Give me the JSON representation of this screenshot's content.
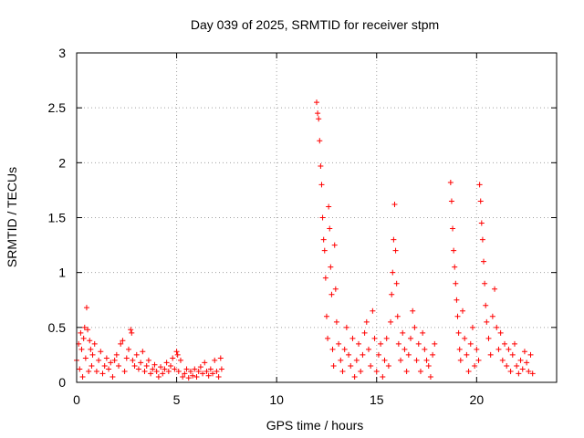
{
  "chart_data": {
    "type": "scatter",
    "title": "Day 039 of 2025, SRMTID for receiver stpm",
    "xlabel": "GPS time / hours",
    "ylabel": "SRMTID / TECUs",
    "xlim": [
      0,
      24
    ],
    "ylim": [
      0,
      3
    ],
    "xticks": [
      0,
      5,
      10,
      15,
      20
    ],
    "xtick_labels": [
      "0",
      "5",
      "10",
      "15",
      "20"
    ],
    "yticks": [
      0,
      0.5,
      1,
      1.5,
      2,
      2.5,
      3
    ],
    "ytick_labels": [
      "0",
      "0.5",
      "1",
      "1.5",
      "2",
      "2.5",
      "3"
    ],
    "grid": true,
    "marker": "+",
    "series": [
      {
        "name": "SRMTID",
        "color": "#ff0000",
        "points": [
          [
            0.0,
            0.2
          ],
          [
            0.1,
            0.35
          ],
          [
            0.15,
            0.12
          ],
          [
            0.2,
            0.45
          ],
          [
            0.25,
            0.3
          ],
          [
            0.3,
            0.05
          ],
          [
            0.35,
            0.4
          ],
          [
            0.4,
            0.5
          ],
          [
            0.45,
            0.22
          ],
          [
            0.5,
            0.68
          ],
          [
            0.55,
            0.48
          ],
          [
            0.6,
            0.1
          ],
          [
            0.65,
            0.38
          ],
          [
            0.7,
            0.3
          ],
          [
            0.75,
            0.15
          ],
          [
            0.8,
            0.25
          ],
          [
            0.9,
            0.35
          ],
          [
            1.0,
            0.1
          ],
          [
            1.1,
            0.2
          ],
          [
            1.2,
            0.28
          ],
          [
            1.3,
            0.08
          ],
          [
            1.4,
            0.15
          ],
          [
            1.5,
            0.22
          ],
          [
            1.6,
            0.12
          ],
          [
            1.7,
            0.18
          ],
          [
            1.8,
            0.05
          ],
          [
            1.9,
            0.2
          ],
          [
            2.0,
            0.25
          ],
          [
            2.1,
            0.15
          ],
          [
            2.2,
            0.35
          ],
          [
            2.3,
            0.38
          ],
          [
            2.4,
            0.1
          ],
          [
            2.5,
            0.22
          ],
          [
            2.6,
            0.3
          ],
          [
            2.7,
            0.48
          ],
          [
            2.75,
            0.45
          ],
          [
            2.8,
            0.2
          ],
          [
            2.9,
            0.15
          ],
          [
            3.0,
            0.25
          ],
          [
            3.1,
            0.12
          ],
          [
            3.2,
            0.18
          ],
          [
            3.3,
            0.28
          ],
          [
            3.4,
            0.1
          ],
          [
            3.5,
            0.15
          ],
          [
            3.6,
            0.2
          ],
          [
            3.7,
            0.08
          ],
          [
            3.8,
            0.12
          ],
          [
            3.9,
            0.16
          ],
          [
            4.0,
            0.1
          ],
          [
            4.1,
            0.05
          ],
          [
            4.2,
            0.14
          ],
          [
            4.3,
            0.08
          ],
          [
            4.4,
            0.12
          ],
          [
            4.5,
            0.18
          ],
          [
            4.6,
            0.1
          ],
          [
            4.7,
            0.15
          ],
          [
            4.8,
            0.22
          ],
          [
            4.9,
            0.12
          ],
          [
            5.0,
            0.28
          ],
          [
            5.05,
            0.25
          ],
          [
            5.1,
            0.1
          ],
          [
            5.2,
            0.2
          ],
          [
            5.3,
            0.05
          ],
          [
            5.4,
            0.08
          ],
          [
            5.5,
            0.12
          ],
          [
            5.6,
            0.04
          ],
          [
            5.7,
            0.1
          ],
          [
            5.8,
            0.06
          ],
          [
            5.9,
            0.12
          ],
          [
            6.0,
            0.05
          ],
          [
            6.1,
            0.1
          ],
          [
            6.2,
            0.14
          ],
          [
            6.3,
            0.08
          ],
          [
            6.4,
            0.18
          ],
          [
            6.5,
            0.1
          ],
          [
            6.6,
            0.06
          ],
          [
            6.7,
            0.12
          ],
          [
            6.8,
            0.08
          ],
          [
            6.9,
            0.2
          ],
          [
            7.0,
            0.1
          ],
          [
            7.1,
            0.05
          ],
          [
            7.2,
            0.22
          ],
          [
            7.25,
            0.12
          ],
          [
            12.0,
            2.55
          ],
          [
            12.05,
            2.45
          ],
          [
            12.1,
            2.4
          ],
          [
            12.15,
            2.2
          ],
          [
            12.2,
            1.97
          ],
          [
            12.25,
            1.8
          ],
          [
            12.3,
            1.5
          ],
          [
            12.35,
            1.3
          ],
          [
            12.4,
            1.2
          ],
          [
            12.45,
            0.95
          ],
          [
            12.5,
            0.6
          ],
          [
            12.55,
            0.4
          ],
          [
            12.6,
            1.6
          ],
          [
            12.65,
            1.4
          ],
          [
            12.7,
            1.05
          ],
          [
            12.75,
            0.8
          ],
          [
            12.8,
            0.3
          ],
          [
            12.85,
            0.15
          ],
          [
            12.9,
            1.25
          ],
          [
            12.95,
            0.85
          ],
          [
            13.0,
            0.55
          ],
          [
            13.1,
            0.35
          ],
          [
            13.2,
            0.2
          ],
          [
            13.3,
            0.1
          ],
          [
            13.4,
            0.3
          ],
          [
            13.5,
            0.5
          ],
          [
            13.6,
            0.25
          ],
          [
            13.7,
            0.15
          ],
          [
            13.8,
            0.4
          ],
          [
            13.9,
            0.05
          ],
          [
            14.0,
            0.2
          ],
          [
            14.1,
            0.35
          ],
          [
            14.2,
            0.1
          ],
          [
            14.3,
            0.25
          ],
          [
            14.4,
            0.45
          ],
          [
            14.5,
            0.55
          ],
          [
            14.6,
            0.3
          ],
          [
            14.7,
            0.15
          ],
          [
            14.8,
            0.65
          ],
          [
            14.9,
            0.4
          ],
          [
            15.0,
            0.1
          ],
          [
            15.1,
            0.25
          ],
          [
            15.2,
            0.35
          ],
          [
            15.3,
            0.05
          ],
          [
            15.4,
            0.2
          ],
          [
            15.5,
            0.4
          ],
          [
            15.6,
            0.15
          ],
          [
            15.7,
            0.55
          ],
          [
            15.75,
            0.8
          ],
          [
            15.8,
            1.0
          ],
          [
            15.85,
            1.3
          ],
          [
            15.9,
            1.62
          ],
          [
            15.95,
            1.2
          ],
          [
            16.0,
            0.9
          ],
          [
            16.05,
            0.6
          ],
          [
            16.1,
            0.35
          ],
          [
            16.2,
            0.2
          ],
          [
            16.3,
            0.45
          ],
          [
            16.4,
            0.3
          ],
          [
            16.5,
            0.1
          ],
          [
            16.6,
            0.25
          ],
          [
            16.7,
            0.4
          ],
          [
            16.8,
            0.65
          ],
          [
            16.9,
            0.5
          ],
          [
            17.0,
            0.2
          ],
          [
            17.1,
            0.35
          ],
          [
            17.2,
            0.1
          ],
          [
            17.3,
            0.45
          ],
          [
            17.4,
            0.3
          ],
          [
            17.5,
            0.2
          ],
          [
            17.6,
            0.15
          ],
          [
            17.7,
            0.05
          ],
          [
            17.8,
            0.25
          ],
          [
            17.9,
            0.35
          ],
          [
            18.7,
            1.82
          ],
          [
            18.75,
            1.65
          ],
          [
            18.8,
            1.4
          ],
          [
            18.85,
            1.2
          ],
          [
            18.9,
            1.05
          ],
          [
            18.95,
            0.9
          ],
          [
            19.0,
            0.75
          ],
          [
            19.05,
            0.6
          ],
          [
            19.1,
            0.45
          ],
          [
            19.15,
            0.3
          ],
          [
            19.2,
            0.2
          ],
          [
            19.3,
            0.65
          ],
          [
            19.4,
            0.4
          ],
          [
            19.5,
            0.25
          ],
          [
            19.6,
            0.1
          ],
          [
            19.7,
            0.35
          ],
          [
            19.8,
            0.5
          ],
          [
            19.9,
            0.15
          ],
          [
            20.0,
            0.3
          ],
          [
            20.1,
            0.2
          ],
          [
            20.15,
            1.8
          ],
          [
            20.2,
            1.65
          ],
          [
            20.25,
            1.45
          ],
          [
            20.3,
            1.3
          ],
          [
            20.35,
            1.1
          ],
          [
            20.4,
            0.9
          ],
          [
            20.45,
            0.7
          ],
          [
            20.5,
            0.55
          ],
          [
            20.6,
            0.4
          ],
          [
            20.7,
            0.25
          ],
          [
            20.8,
            0.6
          ],
          [
            20.9,
            0.85
          ],
          [
            21.0,
            0.5
          ],
          [
            21.1,
            0.3
          ],
          [
            21.2,
            0.45
          ],
          [
            21.3,
            0.2
          ],
          [
            21.4,
            0.35
          ],
          [
            21.5,
            0.15
          ],
          [
            21.6,
            0.3
          ],
          [
            21.7,
            0.1
          ],
          [
            21.8,
            0.25
          ],
          [
            21.9,
            0.35
          ],
          [
            22.0,
            0.15
          ],
          [
            22.1,
            0.08
          ],
          [
            22.2,
            0.2
          ],
          [
            22.3,
            0.12
          ],
          [
            22.4,
            0.28
          ],
          [
            22.5,
            0.18
          ],
          [
            22.6,
            0.1
          ],
          [
            22.7,
            0.25
          ],
          [
            22.8,
            0.08
          ]
        ]
      }
    ]
  }
}
